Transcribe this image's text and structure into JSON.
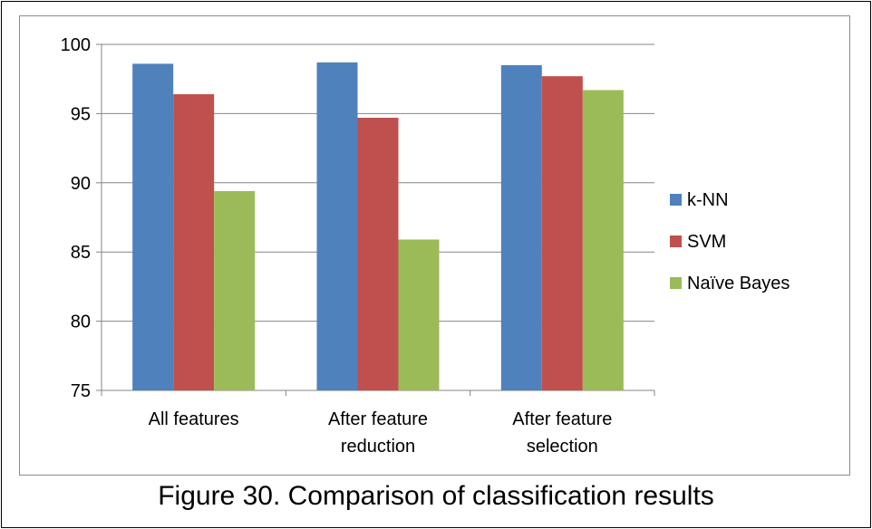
{
  "caption": "Figure 30. Comparison of classification results",
  "chart_data": {
    "type": "bar",
    "title": "",
    "xlabel": "",
    "ylabel": "",
    "categories": [
      [
        "All features"
      ],
      [
        "After feature",
        "reduction"
      ],
      [
        "After feature",
        "selection"
      ]
    ],
    "series": [
      {
        "name": "k-NN",
        "color": "#4f81bd",
        "values": [
          98.6,
          98.7,
          98.5
        ]
      },
      {
        "name": "SVM",
        "color": "#c0504d",
        "values": [
          96.4,
          94.7,
          97.7
        ]
      },
      {
        "name": "Naïve Bayes",
        "color": "#9bbb59",
        "values": [
          89.4,
          85.9,
          96.7
        ]
      }
    ],
    "ylim": [
      75,
      100
    ],
    "yticks": [
      75,
      80,
      85,
      90,
      95,
      100
    ],
    "grid": true,
    "legend_position": "right"
  }
}
